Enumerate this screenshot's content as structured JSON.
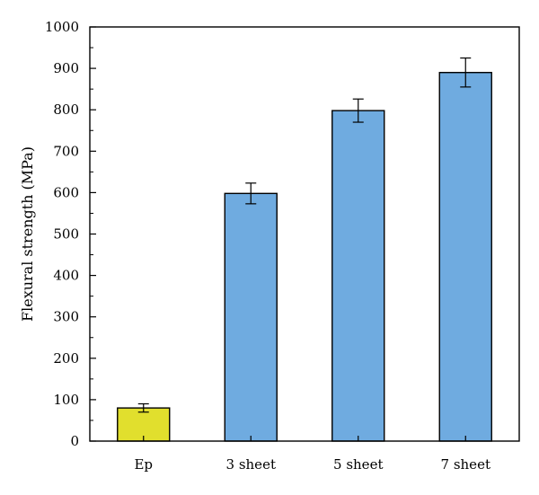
{
  "chart_data": {
    "type": "bar",
    "title": "",
    "xlabel": "",
    "ylabel": "Flexural strength (MPa)",
    "categories": [
      "Ep",
      "3 sheet",
      "5 sheet",
      "7 sheet"
    ],
    "values": [
      80,
      598,
      798,
      890
    ],
    "errors": [
      10,
      25,
      28,
      35
    ],
    "bar_colors": [
      "#e1df2d",
      "#6fabe0",
      "#6fabe0",
      "#6fabe0"
    ],
    "ylim": [
      0,
      1000
    ],
    "yticks": [
      0,
      100,
      200,
      300,
      400,
      500,
      600,
      700,
      800,
      900,
      1000
    ],
    "grid": false,
    "legend": "none"
  }
}
